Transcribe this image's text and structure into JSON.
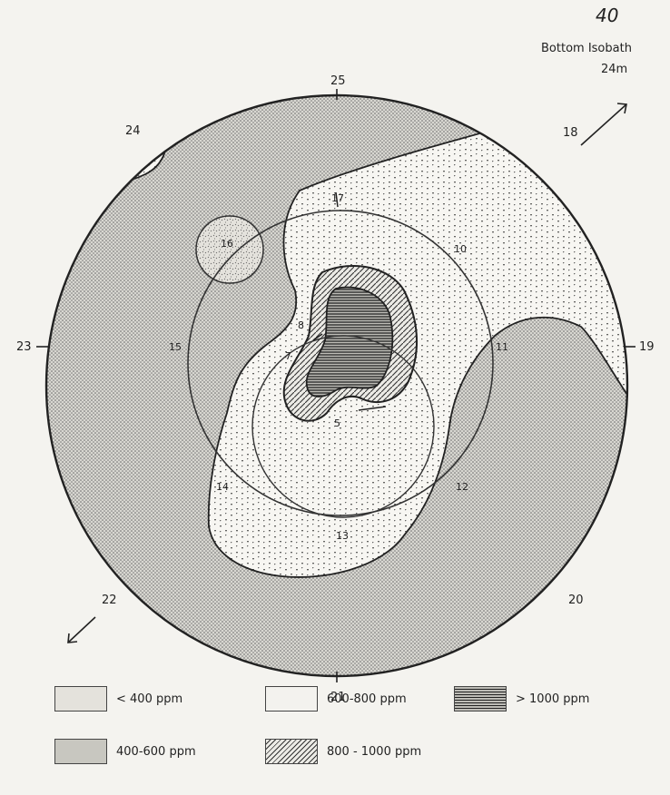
{
  "page_number": "40",
  "isobath": {
    "line1": "Bottom Isobath",
    "line2": "24m"
  },
  "station_labels": {
    "s25": "25",
    "s24": "24",
    "s18": "18",
    "s23": "23",
    "s19": "19",
    "s22": "22",
    "s20": "20",
    "s21": "21",
    "s17": "17",
    "s16": "16",
    "s10": "10",
    "s15": "15",
    "s11": "11",
    "s8": "8",
    "s7": "7",
    "s5": "5",
    "s14": "14",
    "s12": "12",
    "s13": "13"
  },
  "legend": [
    {
      "label": "< 400 ppm",
      "pattern": "speckle"
    },
    {
      "label": "400-600 ppm",
      "pattern": "dense-dots"
    },
    {
      "label": "600-800 ppm",
      "pattern": "sparse-dots"
    },
    {
      "label": "800 - 1000 ppm",
      "pattern": "diagonal"
    },
    {
      "label": "> 1000 ppm",
      "pattern": "horizontal"
    }
  ]
}
